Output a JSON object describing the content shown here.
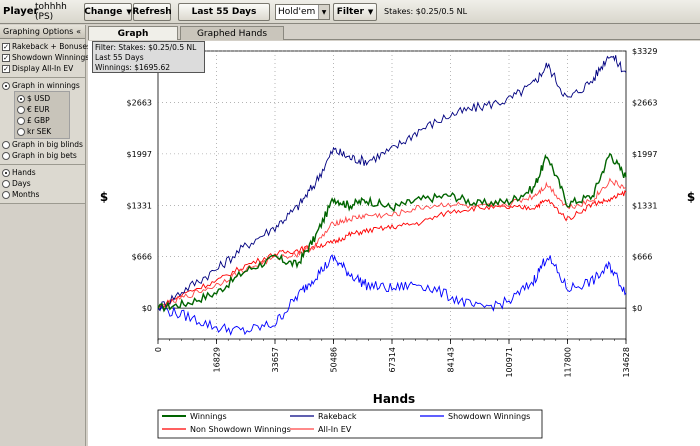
{
  "toolbar": {
    "player_label": "Player",
    "player_name": "tohhhh (PS)",
    "change_label": "Change",
    "refresh_label": "Refresh",
    "date_label": "Last  55 Days",
    "game_value": "Hold'em",
    "filter_label": "Filter",
    "stakes_text": "Stakes: $0.25/0.5 NL"
  },
  "sidebar": {
    "header": "Graphing Options",
    "collapse_glyph": "«",
    "checkboxes": [
      {
        "label": "Rakeback + Bonuses",
        "checked": true
      },
      {
        "label": "Showdown Winnings",
        "checked": true
      },
      {
        "label": "Display All-In EV",
        "checked": true
      }
    ],
    "graph_in_winnings": "Graph in winnings",
    "currencies": [
      {
        "label": "$ USD",
        "selected": true
      },
      {
        "label": "€ EUR",
        "selected": false
      },
      {
        "label": "£ GBP",
        "selected": false
      },
      {
        "label": "kr SEK",
        "selected": false
      }
    ],
    "graph_in_bb": "Graph in big blinds",
    "graph_in_bets": "Graph in big bets",
    "x_modes": [
      {
        "label": "Hands",
        "selected": true
      },
      {
        "label": "Days",
        "selected": false
      },
      {
        "label": "Months",
        "selected": false
      }
    ]
  },
  "tabs": [
    {
      "label": "Graph",
      "active": true
    },
    {
      "label": "Graphed Hands",
      "active": false
    }
  ],
  "filter_box": {
    "line1": "Filter: Stakes: $0.25/0.5 NL",
    "line2": "Last  55 Days",
    "line3": "Winnings: $1695.62"
  },
  "chart_data": {
    "type": "line",
    "xlabel": "Hands",
    "ylabel": "$",
    "x_ticks": [
      "0",
      "16829",
      "33657",
      "50486",
      "67314",
      "84143",
      "100971",
      "117800",
      "134628"
    ],
    "y_ticks": [
      "$0",
      "$666",
      "$1331",
      "$1997",
      "$2663",
      "$3329"
    ],
    "xlim": [
      0,
      134628
    ],
    "ylim": [
      -400,
      3329
    ],
    "grid": true,
    "legend_placement": "bottom",
    "series": [
      {
        "name": "Winnings",
        "color": "#006400",
        "x": [
          0,
          8000,
          16829,
          25000,
          33657,
          40000,
          45000,
          50486,
          55000,
          60000,
          67314,
          75000,
          84143,
          92000,
          100971,
          108000,
          112000,
          117800,
          125000,
          130000,
          134628
        ],
        "y": [
          0,
          60,
          200,
          480,
          650,
          560,
          900,
          1420,
          1330,
          1400,
          1300,
          1400,
          1460,
          1350,
          1380,
          1550,
          1980,
          1350,
          1450,
          2000,
          1695
        ]
      },
      {
        "name": "Rakeback",
        "color": "#000080",
        "x": [
          0,
          8000,
          16829,
          25000,
          33657,
          40000,
          45000,
          50486,
          55000,
          60000,
          67314,
          75000,
          84143,
          92000,
          100971,
          108000,
          112000,
          117800,
          125000,
          130000,
          134628
        ],
        "y": [
          0,
          250,
          500,
          800,
          1050,
          1300,
          1600,
          2050,
          1950,
          1900,
          2050,
          2300,
          2500,
          2600,
          2700,
          2900,
          3150,
          2700,
          2950,
          3300,
          3050
        ]
      },
      {
        "name": "Showdown Winnings",
        "color": "#0000ff",
        "x": [
          0,
          8000,
          16829,
          25000,
          33657,
          40000,
          45000,
          50486,
          55000,
          60000,
          67314,
          75000,
          84143,
          92000,
          100971,
          108000,
          112000,
          117800,
          125000,
          130000,
          134628
        ],
        "y": [
          0,
          -100,
          -250,
          -300,
          -200,
          150,
          400,
          650,
          450,
          300,
          250,
          320,
          150,
          0,
          80,
          350,
          680,
          250,
          350,
          550,
          200
        ]
      },
      {
        "name": "Non Showdown Winnings",
        "color": "#ff0000",
        "x": [
          0,
          8000,
          16829,
          25000,
          33657,
          40000,
          45000,
          50486,
          55000,
          60000,
          67314,
          75000,
          84143,
          92000,
          100971,
          108000,
          112000,
          117800,
          125000,
          130000,
          134628
        ],
        "y": [
          0,
          200,
          350,
          550,
          700,
          750,
          800,
          850,
          950,
          1000,
          1050,
          1100,
          1250,
          1300,
          1300,
          1300,
          1400,
          1150,
          1350,
          1400,
          1500
        ]
      },
      {
        "name": "All-In EV",
        "color": "#ff4444",
        "x": [
          0,
          8000,
          16829,
          25000,
          33657,
          40000,
          45000,
          50486,
          55000,
          60000,
          67314,
          75000,
          84143,
          92000,
          100971,
          108000,
          112000,
          117800,
          125000,
          130000,
          134628
        ],
        "y": [
          0,
          150,
          300,
          500,
          650,
          700,
          800,
          1100,
          1150,
          1200,
          1200,
          1300,
          1350,
          1300,
          1350,
          1450,
          1600,
          1300,
          1400,
          1650,
          1550
        ]
      }
    ]
  },
  "colors": {
    "accent_bg": "#d4d0c8",
    "plot_bg": "#ffffff"
  }
}
